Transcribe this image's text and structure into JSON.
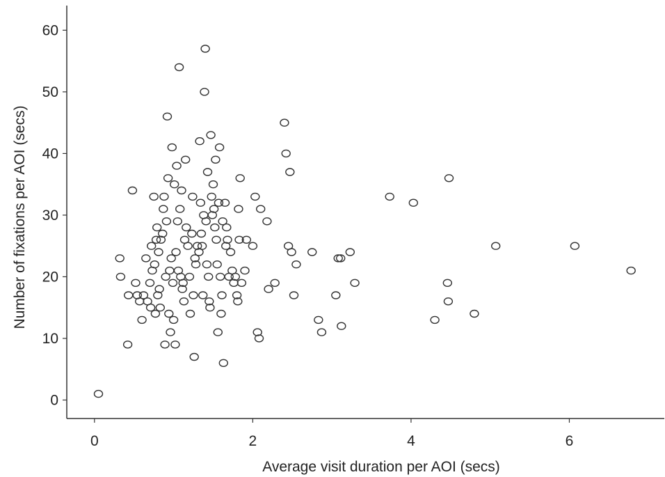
{
  "chart_data": {
    "type": "scatter",
    "title": "",
    "xlabel": "Average visit duration per AOI (secs)",
    "ylabel": "Number of fixations per AOI (secs)",
    "xlim": [
      -0.35,
      7.2
    ],
    "ylim": [
      -3,
      64
    ],
    "xticks": [
      0,
      2,
      4,
      6
    ],
    "yticks": [
      0,
      10,
      20,
      30,
      40,
      50,
      60
    ],
    "marker": "open-circle",
    "grid": false,
    "legend": "none",
    "colors": {
      "marker_stroke": "#333333",
      "axis": "#333333"
    },
    "points": [
      {
        "x": 0.05,
        "y": 1
      },
      {
        "x": 0.32,
        "y": 23
      },
      {
        "x": 0.33,
        "y": 20
      },
      {
        "x": 0.42,
        "y": 9
      },
      {
        "x": 0.43,
        "y": 17
      },
      {
        "x": 0.48,
        "y": 34
      },
      {
        "x": 0.52,
        "y": 19
      },
      {
        "x": 0.54,
        "y": 17
      },
      {
        "x": 0.57,
        "y": 16
      },
      {
        "x": 0.6,
        "y": 13
      },
      {
        "x": 0.62,
        "y": 17
      },
      {
        "x": 0.65,
        "y": 23
      },
      {
        "x": 0.67,
        "y": 16
      },
      {
        "x": 0.7,
        "y": 19
      },
      {
        "x": 0.71,
        "y": 15
      },
      {
        "x": 0.72,
        "y": 25
      },
      {
        "x": 0.73,
        "y": 21
      },
      {
        "x": 0.75,
        "y": 33
      },
      {
        "x": 0.76,
        "y": 22
      },
      {
        "x": 0.77,
        "y": 14
      },
      {
        "x": 0.78,
        "y": 26
      },
      {
        "x": 0.79,
        "y": 28
      },
      {
        "x": 0.8,
        "y": 17
      },
      {
        "x": 0.81,
        "y": 24
      },
      {
        "x": 0.82,
        "y": 18
      },
      {
        "x": 0.83,
        "y": 15
      },
      {
        "x": 0.84,
        "y": 26
      },
      {
        "x": 0.86,
        "y": 27
      },
      {
        "x": 0.87,
        "y": 31
      },
      {
        "x": 0.88,
        "y": 33
      },
      {
        "x": 0.89,
        "y": 9
      },
      {
        "x": 0.9,
        "y": 20
      },
      {
        "x": 0.91,
        "y": 29
      },
      {
        "x": 0.92,
        "y": 46
      },
      {
        "x": 0.93,
        "y": 36
      },
      {
        "x": 0.94,
        "y": 14
      },
      {
        "x": 0.95,
        "y": 21
      },
      {
        "x": 0.96,
        "y": 11
      },
      {
        "x": 0.97,
        "y": 23
      },
      {
        "x": 0.98,
        "y": 41
      },
      {
        "x": 0.99,
        "y": 19
      },
      {
        "x": 1.0,
        "y": 13
      },
      {
        "x": 1.01,
        "y": 35
      },
      {
        "x": 1.02,
        "y": 9
      },
      {
        "x": 1.03,
        "y": 24
      },
      {
        "x": 1.04,
        "y": 38
      },
      {
        "x": 1.05,
        "y": 29
      },
      {
        "x": 1.06,
        "y": 21
      },
      {
        "x": 1.07,
        "y": 54
      },
      {
        "x": 1.08,
        "y": 31
      },
      {
        "x": 1.09,
        "y": 20
      },
      {
        "x": 1.1,
        "y": 34
      },
      {
        "x": 1.11,
        "y": 18
      },
      {
        "x": 1.12,
        "y": 19
      },
      {
        "x": 1.13,
        "y": 16
      },
      {
        "x": 1.14,
        "y": 26
      },
      {
        "x": 1.15,
        "y": 39
      },
      {
        "x": 1.16,
        "y": 28
      },
      {
        "x": 1.18,
        "y": 25
      },
      {
        "x": 1.2,
        "y": 20
      },
      {
        "x": 1.21,
        "y": 14
      },
      {
        "x": 1.23,
        "y": 27
      },
      {
        "x": 1.24,
        "y": 33
      },
      {
        "x": 1.25,
        "y": 17
      },
      {
        "x": 1.26,
        "y": 7
      },
      {
        "x": 1.27,
        "y": 23
      },
      {
        "x": 1.28,
        "y": 22
      },
      {
        "x": 1.3,
        "y": 25
      },
      {
        "x": 1.32,
        "y": 24
      },
      {
        "x": 1.33,
        "y": 42
      },
      {
        "x": 1.34,
        "y": 32
      },
      {
        "x": 1.35,
        "y": 27
      },
      {
        "x": 1.36,
        "y": 25
      },
      {
        "x": 1.37,
        "y": 17
      },
      {
        "x": 1.38,
        "y": 30
      },
      {
        "x": 1.39,
        "y": 50
      },
      {
        "x": 1.4,
        "y": 57
      },
      {
        "x": 1.41,
        "y": 29
      },
      {
        "x": 1.42,
        "y": 22
      },
      {
        "x": 1.43,
        "y": 37
      },
      {
        "x": 1.44,
        "y": 20
      },
      {
        "x": 1.45,
        "y": 16
      },
      {
        "x": 1.46,
        "y": 15
      },
      {
        "x": 1.47,
        "y": 43
      },
      {
        "x": 1.48,
        "y": 33
      },
      {
        "x": 1.49,
        "y": 30
      },
      {
        "x": 1.5,
        "y": 35
      },
      {
        "x": 1.51,
        "y": 31
      },
      {
        "x": 1.52,
        "y": 28
      },
      {
        "x": 1.53,
        "y": 39
      },
      {
        "x": 1.54,
        "y": 26
      },
      {
        "x": 1.55,
        "y": 22
      },
      {
        "x": 1.56,
        "y": 11
      },
      {
        "x": 1.57,
        "y": 32
      },
      {
        "x": 1.58,
        "y": 41
      },
      {
        "x": 1.59,
        "y": 20
      },
      {
        "x": 1.6,
        "y": 14
      },
      {
        "x": 1.61,
        "y": 17
      },
      {
        "x": 1.62,
        "y": 29
      },
      {
        "x": 1.63,
        "y": 6
      },
      {
        "x": 1.65,
        "y": 32
      },
      {
        "x": 1.66,
        "y": 25
      },
      {
        "x": 1.67,
        "y": 28
      },
      {
        "x": 1.68,
        "y": 26
      },
      {
        "x": 1.7,
        "y": 20
      },
      {
        "x": 1.72,
        "y": 24
      },
      {
        "x": 1.74,
        "y": 21
      },
      {
        "x": 1.76,
        "y": 19
      },
      {
        "x": 1.78,
        "y": 20
      },
      {
        "x": 1.8,
        "y": 17
      },
      {
        "x": 1.81,
        "y": 16
      },
      {
        "x": 1.82,
        "y": 31
      },
      {
        "x": 1.83,
        "y": 26
      },
      {
        "x": 1.84,
        "y": 36
      },
      {
        "x": 1.86,
        "y": 19
      },
      {
        "x": 1.9,
        "y": 21
      },
      {
        "x": 1.92,
        "y": 26
      },
      {
        "x": 2.0,
        "y": 25
      },
      {
        "x": 2.03,
        "y": 33
      },
      {
        "x": 2.06,
        "y": 11
      },
      {
        "x": 2.08,
        "y": 10
      },
      {
        "x": 2.1,
        "y": 31
      },
      {
        "x": 2.18,
        "y": 29
      },
      {
        "x": 2.2,
        "y": 18
      },
      {
        "x": 2.28,
        "y": 19
      },
      {
        "x": 2.4,
        "y": 45
      },
      {
        "x": 2.42,
        "y": 40
      },
      {
        "x": 2.45,
        "y": 25
      },
      {
        "x": 2.47,
        "y": 37
      },
      {
        "x": 2.49,
        "y": 24
      },
      {
        "x": 2.52,
        "y": 17
      },
      {
        "x": 2.55,
        "y": 22
      },
      {
        "x": 2.75,
        "y": 24
      },
      {
        "x": 2.83,
        "y": 13
      },
      {
        "x": 2.87,
        "y": 11
      },
      {
        "x": 3.05,
        "y": 17
      },
      {
        "x": 3.08,
        "y": 23
      },
      {
        "x": 3.11,
        "y": 23
      },
      {
        "x": 3.12,
        "y": 12
      },
      {
        "x": 3.23,
        "y": 24
      },
      {
        "x": 3.29,
        "y": 19
      },
      {
        "x": 3.73,
        "y": 33
      },
      {
        "x": 4.03,
        "y": 32
      },
      {
        "x": 4.3,
        "y": 13
      },
      {
        "x": 4.46,
        "y": 19
      },
      {
        "x": 4.47,
        "y": 16
      },
      {
        "x": 4.48,
        "y": 36
      },
      {
        "x": 4.8,
        "y": 14
      },
      {
        "x": 5.07,
        "y": 25
      },
      {
        "x": 6.07,
        "y": 25
      },
      {
        "x": 6.78,
        "y": 21
      }
    ]
  }
}
